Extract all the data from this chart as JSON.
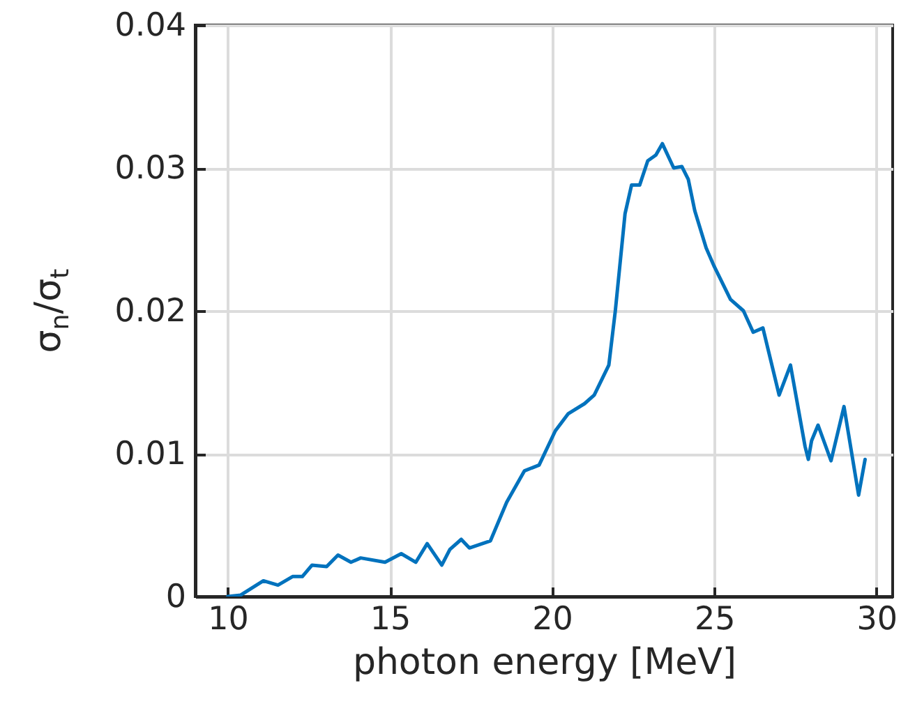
{
  "chart_data": {
    "type": "line",
    "xlabel": "photon energy [MeV]",
    "ylabel": "σ$_{n}$/σ$_{t}$",
    "x": [
      10.0,
      10.4,
      11.1,
      11.55,
      12.0,
      12.3,
      12.6,
      13.05,
      13.4,
      13.8,
      14.1,
      14.85,
      15.35,
      15.8,
      16.15,
      16.6,
      16.85,
      17.2,
      17.45,
      18.1,
      18.6,
      19.15,
      19.6,
      20.1,
      20.5,
      21.0,
      21.3,
      21.75,
      21.95,
      22.25,
      22.45,
      22.7,
      22.95,
      23.2,
      23.4,
      23.75,
      24.0,
      24.2,
      24.4,
      24.75,
      25.0,
      25.5,
      25.9,
      26.2,
      26.5,
      27.0,
      27.35,
      27.8,
      27.9,
      28.0,
      28.2,
      28.6,
      29.0,
      29.45,
      29.65
    ],
    "series": [
      {
        "color": "#0072bd",
        "values": [
          0.0,
          0.0001,
          0.0011,
          0.0008,
          0.0014,
          0.0014,
          0.0022,
          0.0021,
          0.0029,
          0.0024,
          0.0027,
          0.0024,
          0.003,
          0.0024,
          0.0037,
          0.0022,
          0.0033,
          0.004,
          0.0034,
          0.0039,
          0.0066,
          0.0088,
          0.0092,
          0.0116,
          0.0128,
          0.0135,
          0.0141,
          0.0162,
          0.02,
          0.0268,
          0.0288,
          0.0288,
          0.0305,
          0.0309,
          0.0317,
          0.03,
          0.0301,
          0.0292,
          0.027,
          0.0244,
          0.0231,
          0.0208,
          0.02,
          0.0185,
          0.0188,
          0.0141,
          0.0162,
          0.0105,
          0.0096,
          0.0109,
          0.012,
          0.0095,
          0.0133,
          0.0071,
          0.0096
        ]
      }
    ],
    "xlim": [
      9,
      30.5
    ],
    "xticks": [
      10,
      15,
      20,
      25,
      30
    ],
    "ylim": [
      0,
      0.04
    ],
    "yticks": [
      0,
      0.01,
      0.02,
      0.03,
      0.04
    ],
    "grid": true,
    "line_style": "solid"
  }
}
